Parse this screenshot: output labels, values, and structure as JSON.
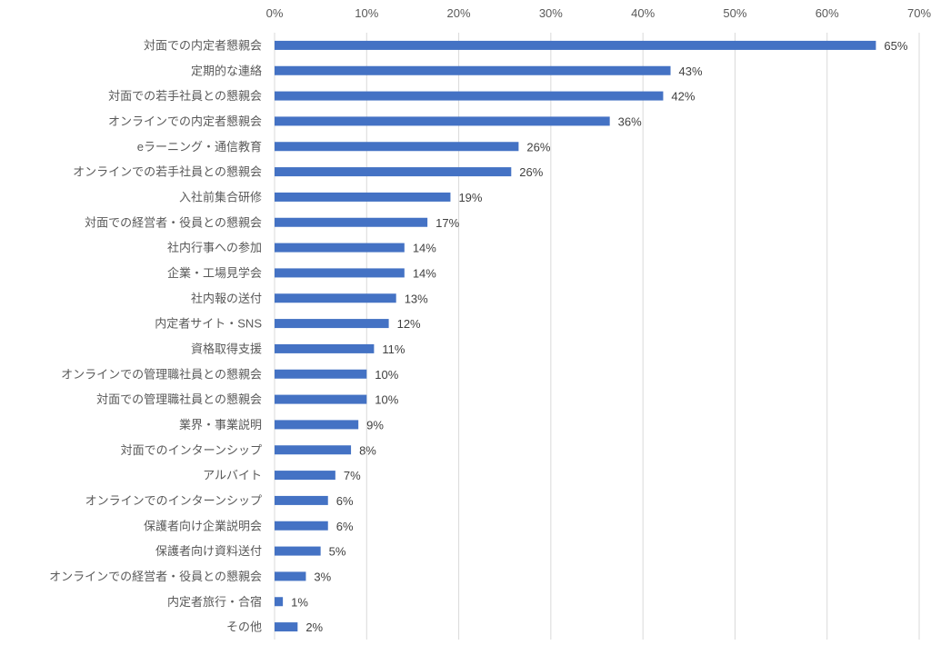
{
  "chart_data": {
    "type": "bar",
    "orientation": "horizontal",
    "title": "",
    "xlabel": "",
    "ylabel": "",
    "xlim": [
      0,
      70
    ],
    "x_ticks": [
      "0%",
      "10%",
      "20%",
      "30%",
      "40%",
      "50%",
      "60%",
      "70%"
    ],
    "x_tick_values": [
      0,
      10,
      20,
      30,
      40,
      50,
      60,
      70
    ],
    "grid": true,
    "legend": "none",
    "bar_color": "#4472C4",
    "categories": [
      "対面での内定者懇親会",
      "定期的な連絡",
      "対面での若手社員との懇親会",
      "オンラインでの内定者懇親会",
      "eラーニング・通信教育",
      "オンラインでの若手社員との懇親会",
      "入社前集合研修",
      "対面での経営者・役員との懇親会",
      "社内行事への参加",
      "企業・工場見学会",
      "社内報の送付",
      "内定者サイト・SNS",
      "資格取得支援",
      "オンラインでの管理職社員との懇親会",
      "対面での管理職社員との懇親会",
      "業界・事業説明",
      "対面でのインターンシップ",
      "アルバイト",
      "オンラインでのインターンシップ",
      "保護者向け企業説明会",
      "保護者向け資料送付",
      "オンラインでの経営者・役員との懇親会",
      "内定者旅行・合宿",
      "その他"
    ],
    "values": [
      65.3,
      43.0,
      42.2,
      36.4,
      26.5,
      25.7,
      19.1,
      16.6,
      14.1,
      14.1,
      13.2,
      12.4,
      10.8,
      10.0,
      10.0,
      9.1,
      8.3,
      6.6,
      5.8,
      5.8,
      5.0,
      3.4,
      0.9,
      2.5
    ],
    "data_labels": [
      "65%",
      "43%",
      "42%",
      "36%",
      "26%",
      "26%",
      "19%",
      "17%",
      "14%",
      "14%",
      "13%",
      "12%",
      "11%",
      "10%",
      "10%",
      "9%",
      "8%",
      "7%",
      "6%",
      "6%",
      "5%",
      "3%",
      "1%",
      "2%"
    ]
  }
}
